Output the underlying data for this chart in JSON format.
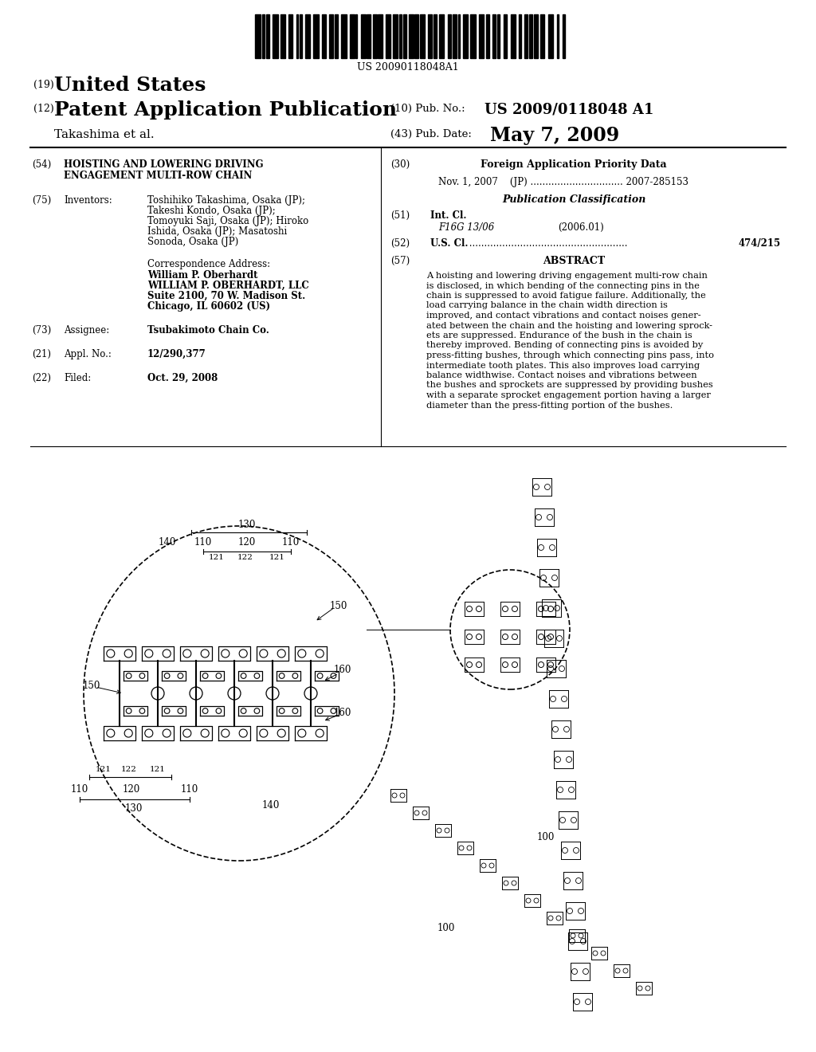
{
  "background_color": "#ffffff",
  "barcode_text": "US 20090118048A1",
  "patent_number_label": "(19)",
  "patent_number_text": "United States",
  "pub_type_label": "(12)",
  "pub_type_text": "Patent Application Publication",
  "pub_no_label": "(10) Pub. No.:",
  "pub_no_value": "US 2009/0118048 A1",
  "inventors_label": "Takashima et al.",
  "pub_date_label": "(43) Pub. Date:",
  "pub_date_value": "May 7, 2009",
  "field54_label": "(54)",
  "field54_line1": "HOISTING AND LOWERING DRIVING",
  "field54_line2": "ENGAGEMENT MULTI-ROW CHAIN",
  "field75_label": "(75)",
  "field75_name": "Inventors:",
  "inv1": "Toshihiko Takashima, Osaka (JP);",
  "inv2": "Takeshi Kondo, Osaka (JP);",
  "inv3": "Tomoyuki Saji, Osaka (JP); Hiroko",
  "inv4": "Ishida, Osaka (JP); Masatoshi",
  "inv5": "Sonoda, Osaka (JP)",
  "correspondence_header": "Correspondence Address:",
  "correspondence_name": "William P. Oberhardt",
  "correspondence_firm": "WILLIAM P. OBERHARDT, LLC",
  "correspondence_addr1": "Suite 2100, 70 W. Madison St.",
  "correspondence_addr2": "Chicago, IL 60602 (US)",
  "field73_label": "(73)",
  "field73_name": "Assignee:",
  "field73_value": "Tsubakimoto Chain Co.",
  "field21_label": "(21)",
  "field21_name": "Appl. No.:",
  "field21_value": "12/290,377",
  "field22_label": "(22)",
  "field22_name": "Filed:",
  "field22_value": "Oct. 29, 2008",
  "field30_label": "(30)",
  "field30_title": "Foreign Application Priority Data",
  "field30_entry": "Nov. 1, 2007    (JP) ............................... 2007-285153",
  "pub_class_header": "Publication Classification",
  "field51_label": "(51)",
  "field51_name": "Int. Cl.",
  "field51_class": "F16G 13/06",
  "field51_year": "(2006.01)",
  "field52_label": "(52)",
  "field52_name": "U.S. Cl.",
  "field52_dots": " .....................................................",
  "field52_value": "474/215",
  "field57_label": "(57)",
  "field57_title": "ABSTRACT",
  "abstract_lines": [
    "A hoisting and lowering driving engagement multi-row chain",
    "is disclosed, in which bending of the connecting pins in the",
    "chain is suppressed to avoid fatigue failure. Additionally, the",
    "load carrying balance in the chain width direction is",
    "improved, and contact vibrations and contact noises gener-",
    "ated between the chain and the hoisting and lowering sprock-",
    "ets are suppressed. Endurance of the bush in the chain is",
    "thereby improved. Bending of connecting pins is avoided by",
    "press-fitting bushes, through which connecting pins pass, into",
    "intermediate tooth plates. This also improves load carrying",
    "balance widthwise. Contact noises and vibrations between",
    "the bushes and sprockets are suppressed by providing bushes",
    "with a separate sprocket engagement portion having a larger",
    "diameter than the press-fitting portion of the bushes."
  ],
  "text_color": "#000000",
  "font_family": "DejaVu Serif"
}
